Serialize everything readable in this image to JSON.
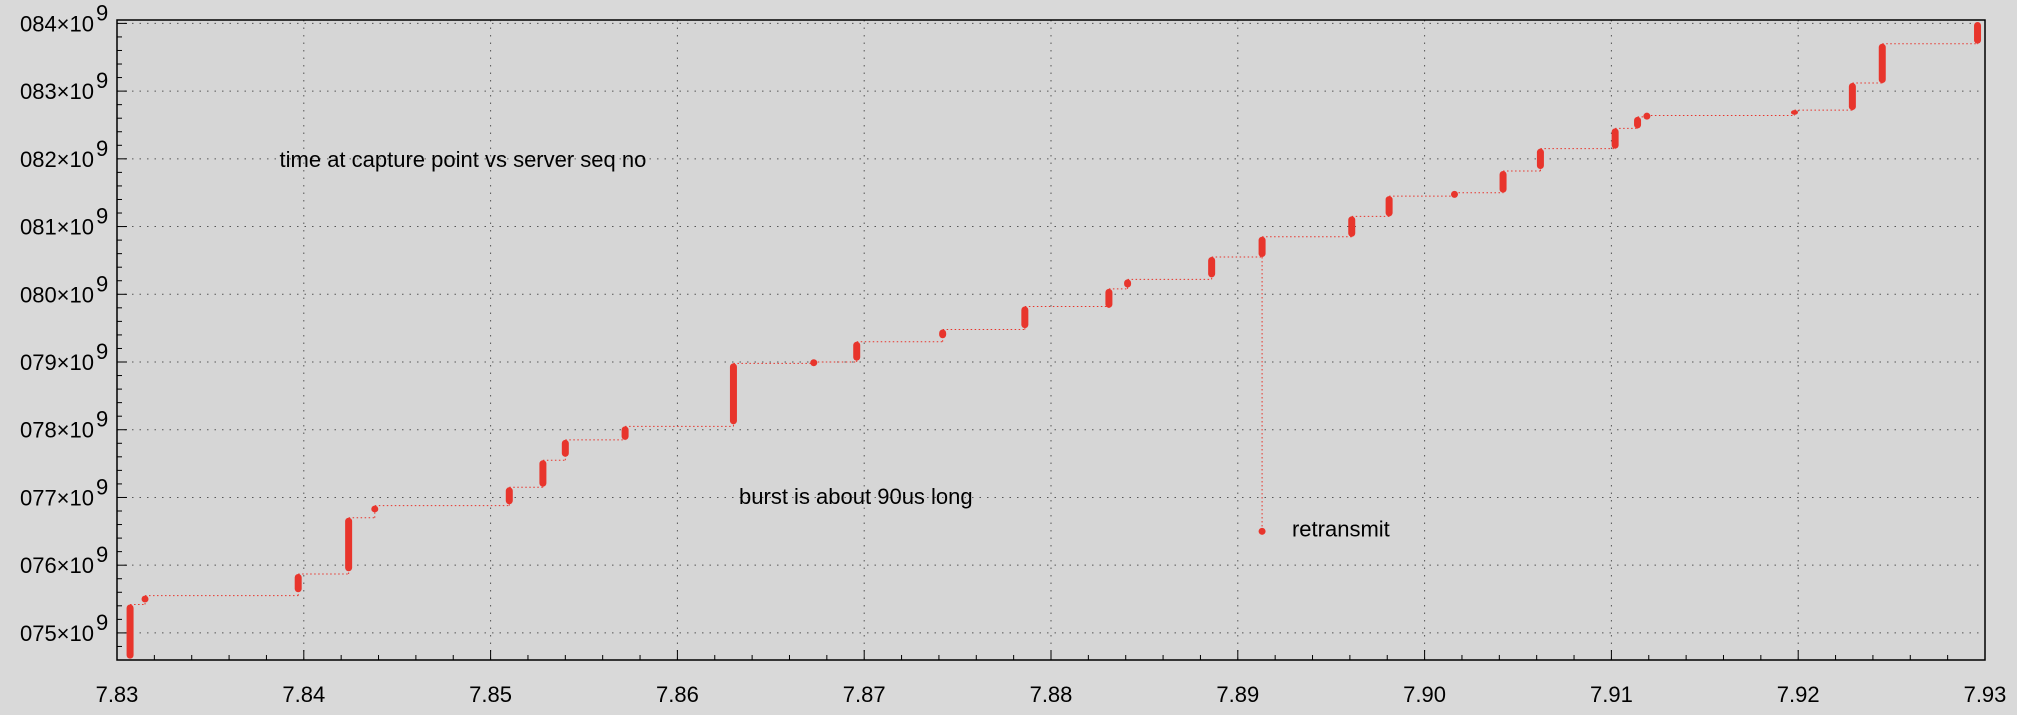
{
  "chart_data": {
    "type": "scatter",
    "title": "",
    "xlabel": "",
    "ylabel": "",
    "xlim": [
      7.83,
      7.93
    ],
    "ylim": [
      1074.6,
      1084.05
    ],
    "x_ticks": [
      {
        "value": 7.83,
        "label": "7.83"
      },
      {
        "value": 7.84,
        "label": "7.84"
      },
      {
        "value": 7.85,
        "label": "7.85"
      },
      {
        "value": 7.86,
        "label": "7.86"
      },
      {
        "value": 7.87,
        "label": "7.87"
      },
      {
        "value": 7.88,
        "label": "7.88"
      },
      {
        "value": 7.89,
        "label": "7.89"
      },
      {
        "value": 7.9,
        "label": "7.90"
      },
      {
        "value": 7.91,
        "label": "7.91"
      },
      {
        "value": 7.92,
        "label": "7.92"
      },
      {
        "value": 7.93,
        "label": "7.93"
      }
    ],
    "y_ticks": [
      {
        "value": 1075,
        "label": "075×10",
        "exp": "9"
      },
      {
        "value": 1076,
        "label": "076×10",
        "exp": "9"
      },
      {
        "value": 1077,
        "label": "077×10",
        "exp": "9"
      },
      {
        "value": 1078,
        "label": "078×10",
        "exp": "9"
      },
      {
        "value": 1079,
        "label": "079×10",
        "exp": "9"
      },
      {
        "value": 1080,
        "label": "080×10",
        "exp": "9"
      },
      {
        "value": 1081,
        "label": "081×10",
        "exp": "9"
      },
      {
        "value": 1082,
        "label": "082×10",
        "exp": "9"
      },
      {
        "value": 1083,
        "label": "083×10",
        "exp": "9"
      },
      {
        "value": 1084,
        "label": "084×10",
        "exp": "9"
      }
    ],
    "grid": true,
    "series_color": "#e8352c",
    "bursts": [
      {
        "x": 7.8307,
        "y0": 1074.62,
        "y1": 1075.42
      },
      {
        "x": 7.8315,
        "y0": 1075.45,
        "y1": 1075.55
      },
      {
        "x": 7.8397,
        "y0": 1075.6,
        "y1": 1075.87
      },
      {
        "x": 7.8424,
        "y0": 1075.91,
        "y1": 1076.7
      },
      {
        "x": 7.8438,
        "y0": 1076.78,
        "y1": 1076.88
      },
      {
        "x": 7.851,
        "y0": 1076.9,
        "y1": 1077.15
      },
      {
        "x": 7.8528,
        "y0": 1077.16,
        "y1": 1077.55
      },
      {
        "x": 7.854,
        "y0": 1077.6,
        "y1": 1077.85
      },
      {
        "x": 7.8572,
        "y0": 1077.85,
        "y1": 1078.05
      },
      {
        "x": 7.863,
        "y0": 1078.08,
        "y1": 1078.98
      },
      {
        "x": 7.8673,
        "y0": 1078.98,
        "y1": 1079.0
      },
      {
        "x": 7.8696,
        "y0": 1079.02,
        "y1": 1079.3
      },
      {
        "x": 7.8742,
        "y0": 1079.35,
        "y1": 1079.48
      },
      {
        "x": 7.8786,
        "y0": 1079.5,
        "y1": 1079.82
      },
      {
        "x": 7.8831,
        "y0": 1079.8,
        "y1": 1080.08
      },
      {
        "x": 7.8841,
        "y0": 1080.1,
        "y1": 1080.22
      },
      {
        "x": 7.8886,
        "y0": 1080.25,
        "y1": 1080.55
      },
      {
        "x": 7.8913,
        "y0": 1080.55,
        "y1": 1080.85
      },
      {
        "x": 7.8961,
        "y0": 1080.85,
        "y1": 1081.15
      },
      {
        "x": 7.8981,
        "y0": 1081.15,
        "y1": 1081.45
      },
      {
        "x": 7.9016,
        "y0": 1081.45,
        "y1": 1081.5
      },
      {
        "x": 7.9042,
        "y0": 1081.5,
        "y1": 1081.82
      },
      {
        "x": 7.9062,
        "y0": 1081.85,
        "y1": 1082.15
      },
      {
        "x": 7.9102,
        "y0": 1082.15,
        "y1": 1082.45
      },
      {
        "x": 7.9114,
        "y0": 1082.45,
        "y1": 1082.62
      },
      {
        "x": 7.9119,
        "y0": 1082.62,
        "y1": 1082.64
      },
      {
        "x": 7.9198,
        "y0": 1082.65,
        "y1": 1082.72
      },
      {
        "x": 7.9229,
        "y0": 1082.72,
        "y1": 1083.12
      },
      {
        "x": 7.9245,
        "y0": 1083.12,
        "y1": 1083.7
      },
      {
        "x": 7.9296,
        "y0": 1083.7,
        "y1": 1084.02
      }
    ],
    "retransmit_point": {
      "x": 7.8913,
      "y": 1076.5
    },
    "annotations": [
      {
        "text": "time at capture point vs server seq no",
        "x": 7.8387,
        "y": 1081.88
      },
      {
        "text": "burst is about 90us long",
        "x": 7.8633,
        "y": 1076.9
      },
      {
        "text": "retransmit",
        "x": 7.8929,
        "y": 1076.42
      }
    ]
  }
}
